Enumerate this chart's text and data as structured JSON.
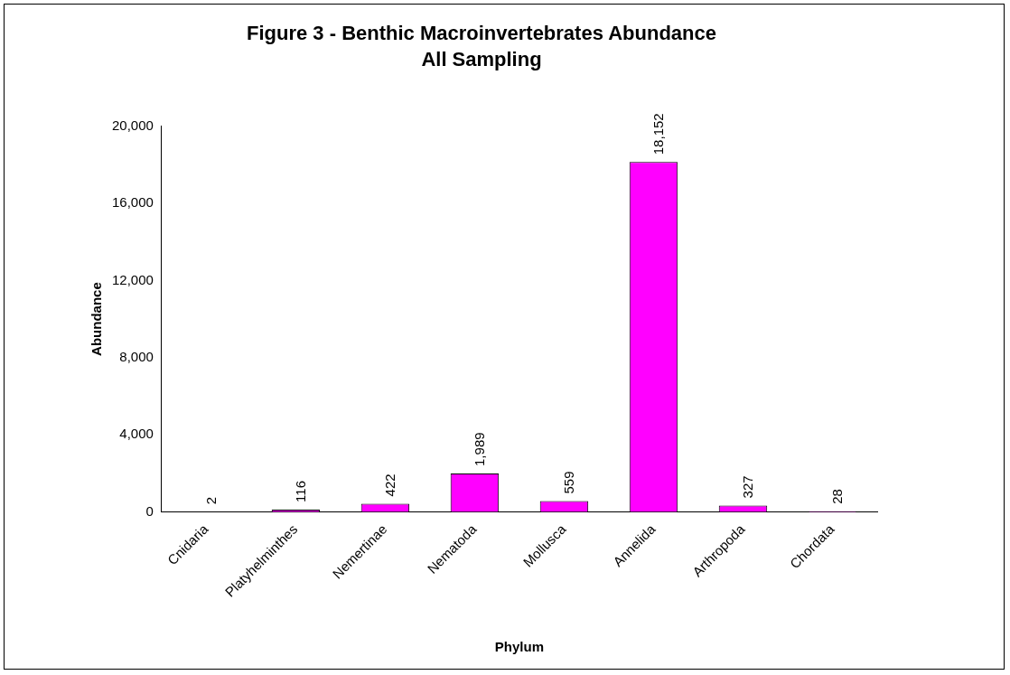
{
  "chart_data": {
    "type": "bar",
    "title": "Figure 3 - Benthic Macroinvertebrates Abundance",
    "subtitle": "All Sampling",
    "xlabel": "Phylum",
    "ylabel": "Abundance",
    "categories": [
      "Cnidaria",
      "Platyhelminthes",
      "Nemertinae",
      "Nematoda",
      "Mollusca",
      "Annelida",
      "Arthropoda",
      "Chordata"
    ],
    "values": [
      2,
      116,
      422,
      1989,
      559,
      18152,
      327,
      28
    ],
    "value_labels": [
      "2",
      "116",
      "422",
      "1,989",
      "559",
      "18,152",
      "327",
      "28"
    ],
    "color": "#ff00ff",
    "ylim": [
      0,
      20000
    ],
    "yticks": [
      {
        "value": 0,
        "label": "0"
      },
      {
        "value": 4000,
        "label": "4,000"
      },
      {
        "value": 8000,
        "label": "8,000"
      },
      {
        "value": 12000,
        "label": "12,000"
      },
      {
        "value": 16000,
        "label": "16,000"
      },
      {
        "value": 20000,
        "label": "20,000"
      }
    ],
    "grid": false,
    "legend": false
  }
}
